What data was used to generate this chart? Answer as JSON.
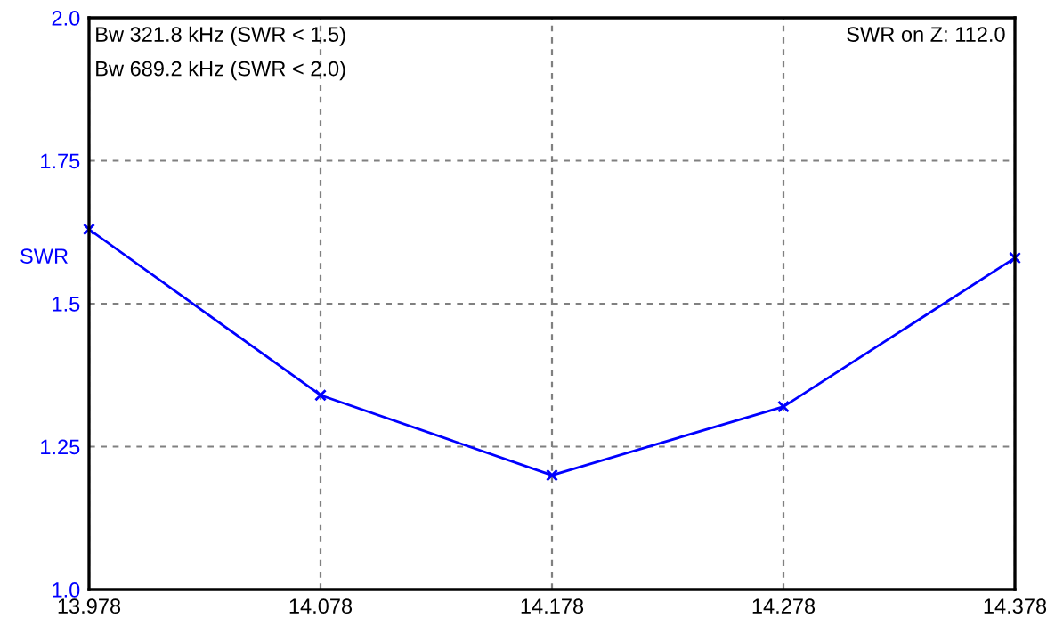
{
  "chart_data": {
    "type": "line",
    "x": [
      13.978,
      14.078,
      14.178,
      14.278,
      14.378
    ],
    "series": [
      {
        "color": "#0000ff",
        "values": [
          1.63,
          1.34,
          1.2,
          1.32,
          1.58
        ]
      }
    ],
    "ylabel": "SWR",
    "annotations": [
      "Bw 321.8 kHz (SWR < 1.5)",
      "Bw 689.2 kHz (SWR < 2.0)",
      "SWR on Z: 112.0"
    ],
    "xlim": [
      13.978,
      14.378
    ],
    "xticks": [
      13.978,
      14.078,
      14.178,
      14.278,
      14.378
    ],
    "ylim": [
      1.0,
      2.0
    ],
    "yticks": [
      {
        "value": 1.0,
        "label": "1.0"
      },
      1.25,
      1.5,
      1.75,
      {
        "value": 2.0,
        "label": "2.0"
      }
    ],
    "grid": true,
    "marker": "cross",
    "line_style": "solid"
  }
}
